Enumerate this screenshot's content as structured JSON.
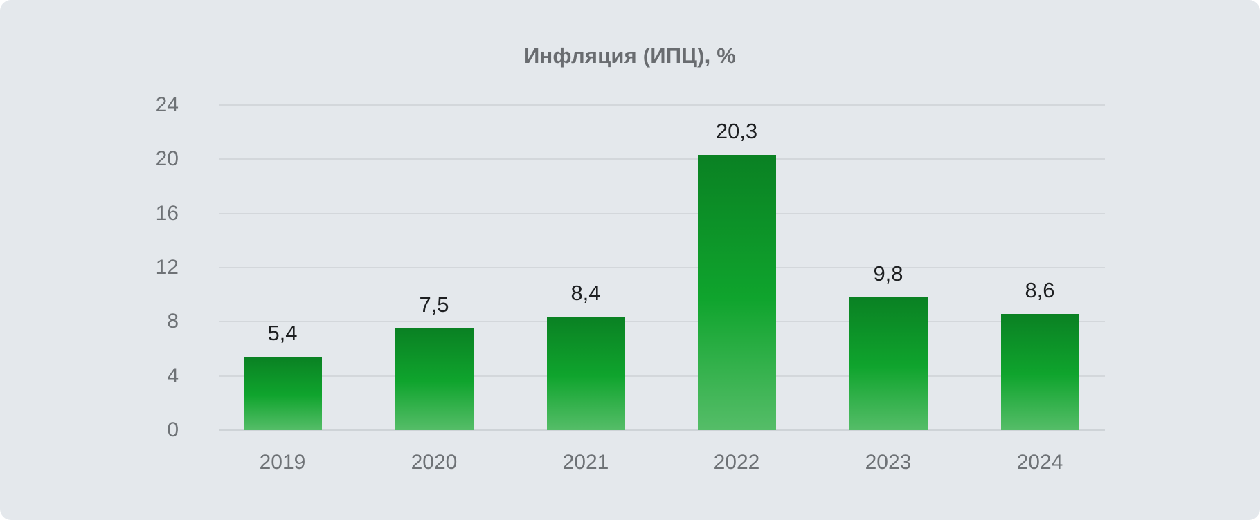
{
  "chart_data": {
    "type": "bar",
    "title": "Инфляция (ИПЦ), %",
    "categories": [
      "2019",
      "2020",
      "2021",
      "2022",
      "2023",
      "2024"
    ],
    "values": [
      5.4,
      7.5,
      8.4,
      20.3,
      9.8,
      8.6
    ],
    "value_labels": [
      "5,4",
      "7,5",
      "8,4",
      "20,3",
      "9,8",
      "8,6"
    ],
    "xlabel": "",
    "ylabel": "",
    "ylim": [
      0,
      24
    ],
    "yticks": [
      0,
      4,
      8,
      12,
      16,
      20,
      24
    ],
    "grid": "horizontal-only",
    "legend": "none",
    "decimal_separator": ",",
    "colors": {
      "card_background": "#e4e8ec",
      "gridline": "#d3d7db",
      "title_text": "#696c70",
      "axis_text": "#6e7276",
      "value_text": "#1d1f21",
      "bar_gradient_top": "#0a8123",
      "bar_gradient_mid": "#0fa42d",
      "bar_gradient_bottom": "#55bd68"
    }
  }
}
